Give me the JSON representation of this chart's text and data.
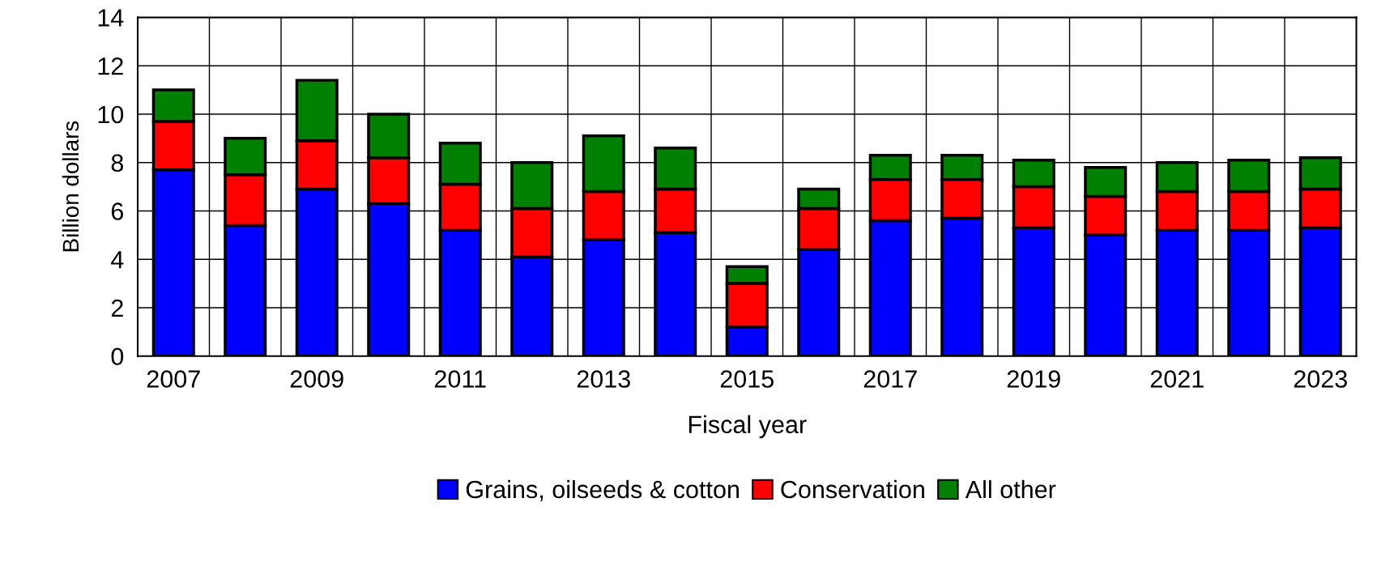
{
  "chart_data": {
    "type": "bar",
    "stacked": true,
    "xlabel": "Fiscal year",
    "ylabel": "Billion dollars",
    "categories": [
      "2007",
      null,
      "2009",
      null,
      "2011",
      null,
      "2013",
      null,
      "2015",
      null,
      "2017",
      null,
      "2019",
      null,
      "2021",
      null,
      "2023"
    ],
    "series": [
      {
        "name": "Grains, oilseeds & cotton",
        "color": "#0000ff",
        "values": [
          7.7,
          5.4,
          6.9,
          6.3,
          5.2,
          4.1,
          4.8,
          5.1,
          1.2,
          4.4,
          5.6,
          5.7,
          5.3,
          5.0,
          5.2,
          5.2,
          5.3
        ]
      },
      {
        "name": "Conservation",
        "color": "#ff0000",
        "values": [
          2.0,
          2.1,
          2.0,
          1.9,
          1.9,
          2.0,
          2.0,
          1.8,
          1.8,
          1.7,
          1.7,
          1.6,
          1.7,
          1.6,
          1.6,
          1.6,
          1.6
        ]
      },
      {
        "name": "All other",
        "color": "#008000",
        "values": [
          1.3,
          1.5,
          2.5,
          1.8,
          1.7,
          1.9,
          2.3,
          1.7,
          0.7,
          0.8,
          1.0,
          1.0,
          1.1,
          1.2,
          1.2,
          1.3,
          1.3
        ]
      }
    ],
    "ylim": [
      0,
      14
    ],
    "yticks": [
      0,
      2,
      4,
      6,
      8,
      10,
      12,
      14
    ],
    "grid": true,
    "legend": "bottom"
  }
}
